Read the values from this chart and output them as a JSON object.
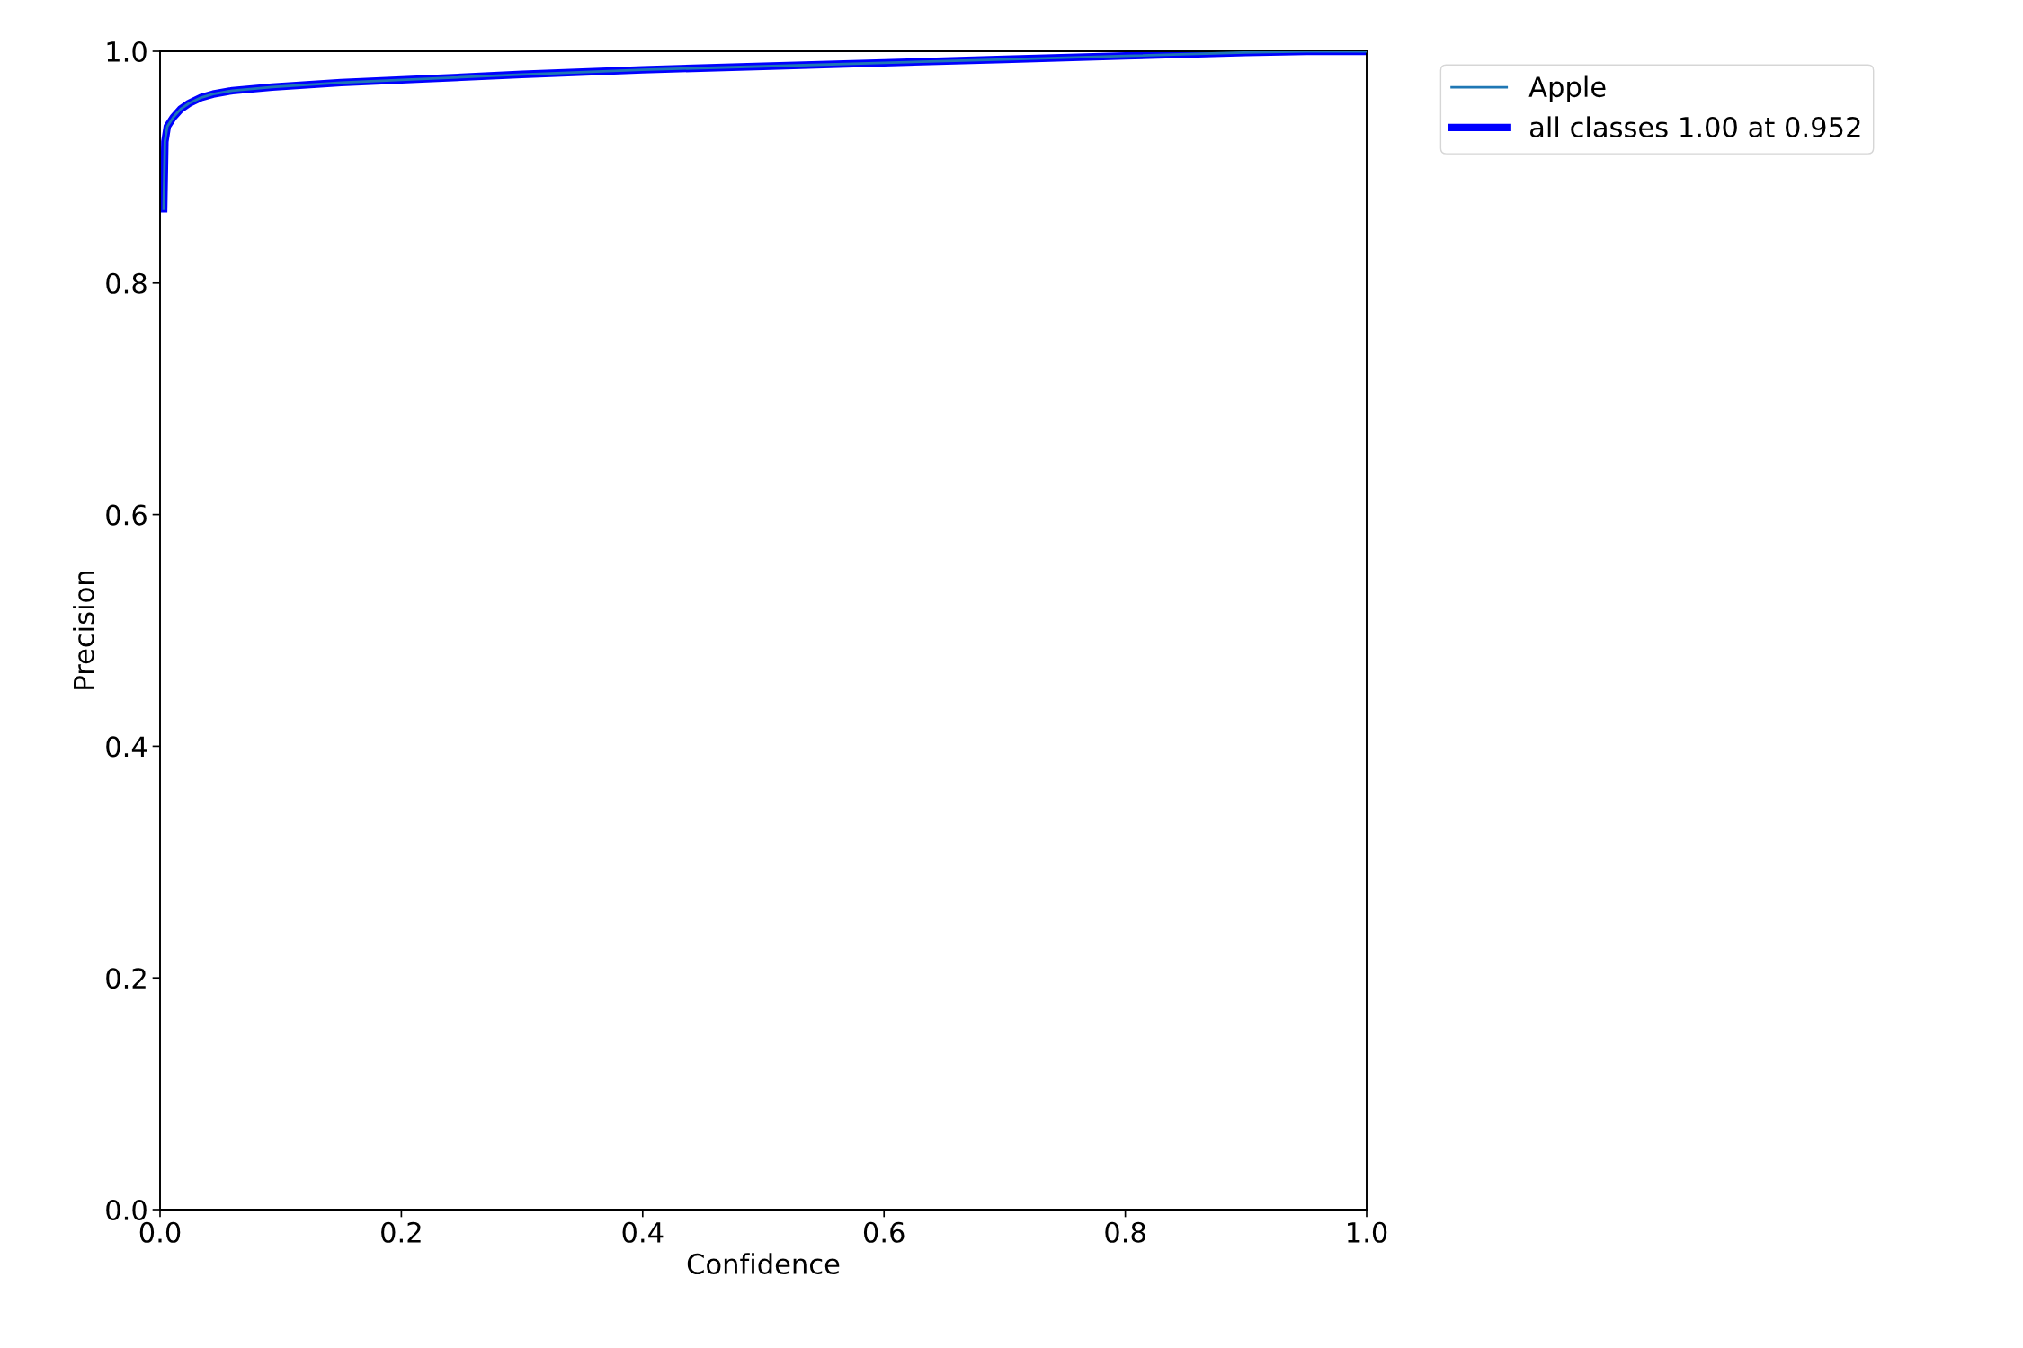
{
  "chart_data": {
    "type": "line",
    "xlabel": "Confidence",
    "ylabel": "Precision",
    "xlim": [
      0.0,
      1.0
    ],
    "ylim": [
      0.0,
      1.0
    ],
    "xticks": [
      {
        "value": 0,
        "label": "0.0"
      },
      {
        "value": 0.2,
        "label": "0.2"
      },
      {
        "value": 0.4,
        "label": "0.4"
      },
      {
        "value": 0.6,
        "label": "0.6"
      },
      {
        "value": 0.8,
        "label": "0.8"
      },
      {
        "value": 1,
        "label": "1.0"
      }
    ],
    "yticks": [
      {
        "value": 0,
        "label": "0.0"
      },
      {
        "value": 0.2,
        "label": "0.2"
      },
      {
        "value": 0.4,
        "label": "0.4"
      },
      {
        "value": 0.6,
        "label": "0.6"
      },
      {
        "value": 0.8,
        "label": "0.8"
      },
      {
        "value": 1,
        "label": "1.0"
      }
    ],
    "x": [
      0.003,
      0.004,
      0.006,
      0.011,
      0.017,
      0.024,
      0.034,
      0.044,
      0.06,
      0.093,
      0.15,
      0.217,
      0.3,
      0.4,
      0.5,
      0.6,
      0.7,
      0.8,
      0.9,
      0.95,
      1.0
    ],
    "series": [
      {
        "name": "Apple",
        "color": "#1f77b4",
        "values": [
          0.864,
          0.922,
          0.935,
          0.943,
          0.95,
          0.955,
          0.96,
          0.963,
          0.966,
          0.969,
          0.973,
          0.976,
          0.98,
          0.984,
          0.987,
          0.99,
          0.993,
          0.996,
          0.999,
          1.0,
          1.0
        ]
      },
      {
        "name": "all classes 1.00 at 0.952",
        "color": "#0000ff",
        "values": [
          0.864,
          0.922,
          0.935,
          0.943,
          0.95,
          0.955,
          0.96,
          0.963,
          0.966,
          0.969,
          0.973,
          0.976,
          0.98,
          0.984,
          0.987,
          0.99,
          0.993,
          0.996,
          0.999,
          1.0,
          1.0
        ]
      }
    ],
    "legend": "top right",
    "grid": false
  }
}
